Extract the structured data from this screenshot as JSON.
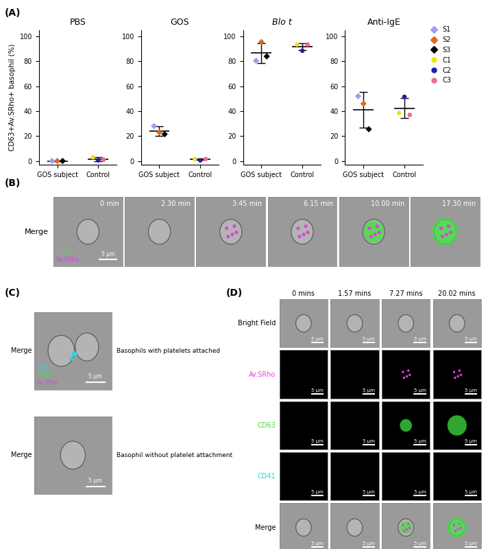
{
  "chart_data": [
    {
      "type": "scatter",
      "title": "PBS",
      "ylabel": "CD63+Av.SRho+ basophil (%)",
      "categories": [
        "GOS subject",
        "Control"
      ],
      "ylim": [
        -3,
        105
      ],
      "yticks": [
        0,
        20,
        40,
        60,
        80,
        100
      ],
      "mean": [
        0,
        1.5
      ],
      "sd": [
        0,
        1.8
      ],
      "series": [
        {
          "name": "S1",
          "color": "#9b9ef0",
          "marker": "diamond",
          "values": [
            0,
            null
          ]
        },
        {
          "name": "S2",
          "color": "#e8641e",
          "marker": "diamond",
          "values": [
            0,
            null
          ]
        },
        {
          "name": "S3",
          "color": "#000000",
          "marker": "diamond",
          "values": [
            0,
            null
          ]
        },
        {
          "name": "C1",
          "color": "#f0e020",
          "marker": "circle",
          "values": [
            null,
            3
          ]
        },
        {
          "name": "C2",
          "color": "#1f1fa8",
          "marker": "circle",
          "values": [
            null,
            0.5
          ]
        },
        {
          "name": "C3",
          "color": "#f06a8a",
          "marker": "circle",
          "values": [
            null,
            1
          ]
        }
      ]
    },
    {
      "type": "scatter",
      "title": "GOS",
      "categories": [
        "GOS subject",
        "Control"
      ],
      "ylim": [
        -3,
        105
      ],
      "yticks": [
        0,
        20,
        40,
        60,
        80,
        100
      ],
      "mean": [
        24,
        1.2
      ],
      "sd": [
        3.6,
        0.6
      ],
      "series": [
        {
          "name": "S1",
          "color": "#9b9ef0",
          "marker": "diamond",
          "values": [
            28,
            null
          ]
        },
        {
          "name": "S2",
          "color": "#e8641e",
          "marker": "diamond",
          "values": [
            23,
            null
          ]
        },
        {
          "name": "S3",
          "color": "#000000",
          "marker": "diamond",
          "values": [
            21.5,
            null
          ]
        },
        {
          "name": "C1",
          "color": "#f0e020",
          "marker": "circle",
          "values": [
            null,
            1.5
          ]
        },
        {
          "name": "C2",
          "color": "#1f1fa8",
          "marker": "circle",
          "values": [
            null,
            0.5
          ]
        },
        {
          "name": "C3",
          "color": "#f06a8a",
          "marker": "circle",
          "values": [
            null,
            1.5
          ]
        }
      ]
    },
    {
      "type": "scatter",
      "title": "Blo t",
      "categories": [
        "GOS subject",
        "Control"
      ],
      "ylim": [
        -3,
        105
      ],
      "yticks": [
        0,
        20,
        40,
        60,
        80,
        100
      ],
      "mean": [
        86.7,
        91.8
      ],
      "sd": [
        7.9,
        2.9
      ],
      "series": [
        {
          "name": "S1",
          "color": "#9b9ef0",
          "marker": "diamond",
          "values": [
            80.5,
            null
          ]
        },
        {
          "name": "S2",
          "color": "#e8641e",
          "marker": "diamond",
          "values": [
            95.5,
            null
          ]
        },
        {
          "name": "S3",
          "color": "#000000",
          "marker": "diamond",
          "values": [
            84,
            null
          ]
        },
        {
          "name": "C1",
          "color": "#f0e020",
          "marker": "circle",
          "values": [
            null,
            93.5
          ]
        },
        {
          "name": "C2",
          "color": "#1f1fa8",
          "marker": "circle",
          "values": [
            null,
            88.5
          ]
        },
        {
          "name": "C3",
          "color": "#f06a8a",
          "marker": "circle",
          "values": [
            null,
            93.5
          ]
        }
      ]
    },
    {
      "type": "scatter",
      "title": "Anti-IgE",
      "legend": "upper left",
      "categories": [
        "GOS subject",
        "Control"
      ],
      "ylim": [
        -3,
        105
      ],
      "yticks": [
        0,
        20,
        40,
        60,
        80,
        100
      ],
      "mean": [
        41.2,
        42.3
      ],
      "sd": [
        14.2,
        8.1
      ],
      "series": [
        {
          "name": "S1",
          "color": "#9b9ef0",
          "marker": "diamond",
          "values": [
            52,
            null
          ]
        },
        {
          "name": "S2",
          "color": "#e8641e",
          "marker": "diamond",
          "values": [
            46,
            null
          ]
        },
        {
          "name": "S3",
          "color": "#000000",
          "marker": "diamond",
          "values": [
            25.5,
            null
          ]
        },
        {
          "name": "C1",
          "color": "#f0e020",
          "marker": "circle",
          "values": [
            null,
            38.5
          ]
        },
        {
          "name": "C2",
          "color": "#1f1fa8",
          "marker": "circle",
          "values": [
            null,
            51.5
          ]
        },
        {
          "name": "C3",
          "color": "#f06a8a",
          "marker": "circle",
          "values": [
            null,
            37
          ]
        }
      ]
    }
  ],
  "panel_labels": [
    "(A)",
    "(B)",
    "(C)",
    "(D)"
  ],
  "panel_b": {
    "row_label": "Merge",
    "times": [
      "0 min",
      "2.30 min",
      "3.45 min",
      "6.15 min",
      "10.00 min",
      "17.30 min"
    ],
    "channels": [
      {
        "name": "CD63",
        "color": "#40e040"
      },
      {
        "name": "Av.SRho",
        "color": "#e040e0"
      }
    ],
    "scale_bar": "5 μm"
  },
  "panel_c": {
    "scale_bar": "5 μm",
    "images": [
      {
        "row_label": "Merge",
        "caption": "Basophils with platelets attached",
        "channels": [
          {
            "name": "CD41",
            "color": "#30d0e0"
          },
          {
            "name": "CD63",
            "color": "#40e040"
          },
          {
            "name": "Av.SRho",
            "color": "#e040e0"
          }
        ]
      },
      {
        "row_label": "Merge",
        "caption": "Basophil without platelet attachment",
        "channels": []
      }
    ]
  },
  "panel_d": {
    "scale_bar": "5 μm",
    "times": [
      "0 mins",
      "1.57 mins",
      "7.27 mins",
      "20.02 mins"
    ],
    "rows": [
      {
        "name": "Bright Field",
        "color": "#000000"
      },
      {
        "name": "Av.SRho",
        "color": "#e040e0"
      },
      {
        "name": "CD63",
        "color": "#40e040"
      },
      {
        "name": "CD41",
        "color": "#30d0e0"
      },
      {
        "name": "Merge",
        "color": "#000000"
      }
    ]
  }
}
